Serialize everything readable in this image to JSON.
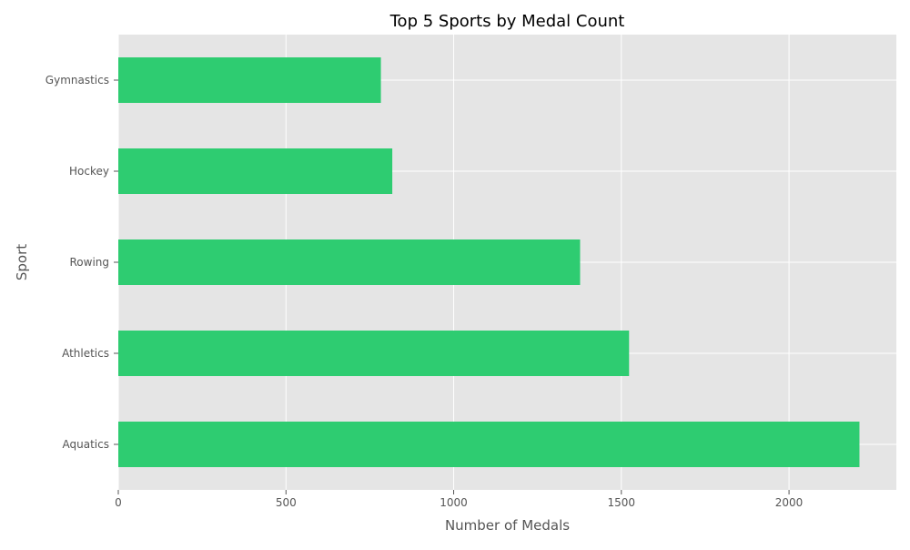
{
  "chart_data": {
    "type": "bar",
    "orientation": "horizontal",
    "title": "Top 5 Sports by Medal Count",
    "xlabel": "Number of Medals",
    "ylabel": "Sport",
    "categories": [
      "Aquatics",
      "Athletics",
      "Rowing",
      "Hockey",
      "Gymnastics"
    ],
    "values": [
      2210,
      1523,
      1377,
      817,
      783
    ],
    "xlim": [
      0,
      2320
    ],
    "xticks": [
      0,
      500,
      1000,
      1500,
      2000
    ],
    "xtick_labels": [
      "0",
      "500",
      "1000",
      "1500",
      "2000"
    ],
    "grid": true,
    "legend": false,
    "colors": {
      "bar": "#2ecc71",
      "plot_background": "#e5e5e5",
      "grid": "#ffffff"
    }
  }
}
